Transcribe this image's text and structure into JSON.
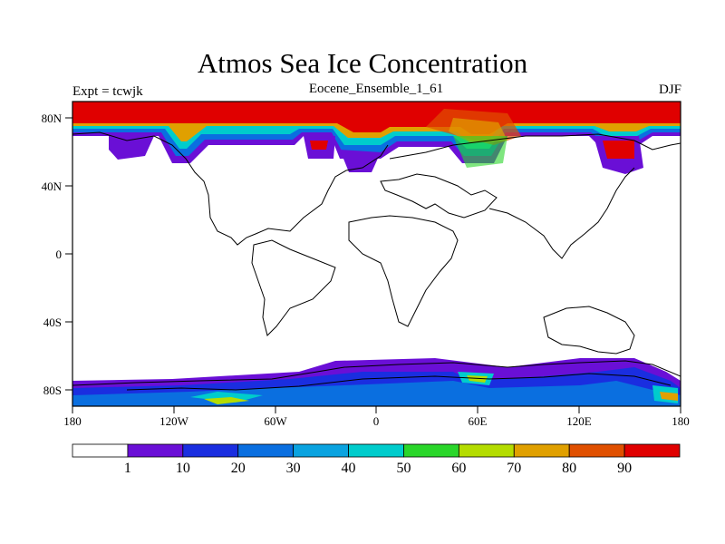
{
  "title": "Atmos Sea Ice Concentration",
  "subtitle_left": "Expt = tcwjk",
  "subtitle_center": "Eocene_Ensemble_1_61",
  "subtitle_right": "DJF",
  "variable": "Sea ice concentration",
  "lat_labels": [
    "80N",
    "40N",
    "0",
    "40S",
    "80S"
  ],
  "lon_labels": [
    "180",
    "120W",
    "60W",
    "0",
    "60E",
    "120E",
    "180"
  ],
  "colorbar": {
    "levels": [
      "1",
      "10",
      "20",
      "30",
      "40",
      "50",
      "60",
      "70",
      "80",
      "90"
    ],
    "colors": [
      "#ffffff",
      "#6a0fd6",
      "#1a2ee0",
      "#0a6fe0",
      "#0aa3e0",
      "#00cccc",
      "#2ad62a",
      "#b4dc00",
      "#e0a000",
      "#e05000",
      "#e00000"
    ]
  },
  "colors": {
    "land_outline": "#000000",
    "high_ice": "#e00000",
    "low_ice": "#6a0fd6"
  }
}
